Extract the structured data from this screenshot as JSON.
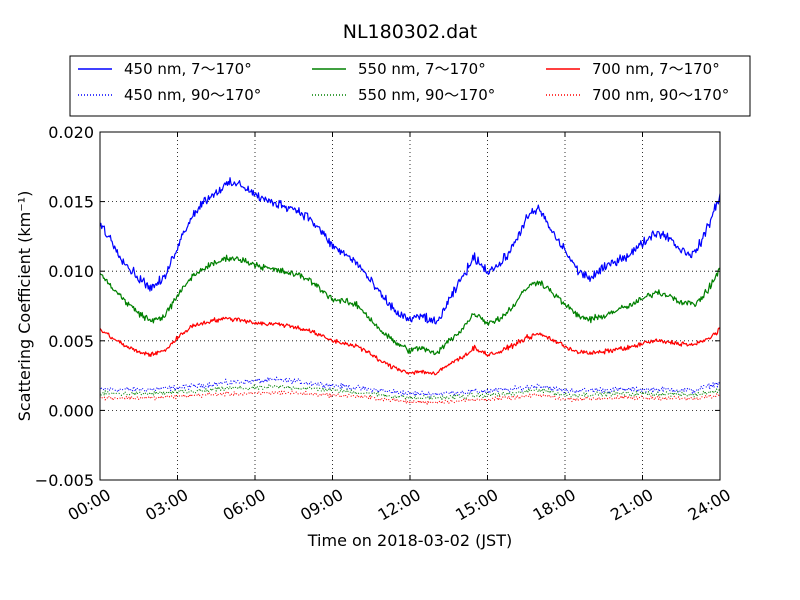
{
  "chart_data": {
    "type": "line",
    "title": "NL180302.dat",
    "xlabel": "Time on 2018-03-02 (JST)",
    "ylabel": "Scattering Coefficient (km⁻¹)",
    "x_unit": "hours",
    "xlim": [
      0,
      24
    ],
    "ylim": [
      -0.005,
      0.02
    ],
    "x_ticks": [
      0,
      3,
      6,
      9,
      12,
      15,
      18,
      21,
      24
    ],
    "x_tick_labels": [
      "00:00",
      "03:00",
      "06:00",
      "09:00",
      "12:00",
      "15:00",
      "18:00",
      "21:00",
      "24:00"
    ],
    "y_ticks": [
      -0.005,
      0.0,
      0.005,
      0.01,
      0.015,
      0.02
    ],
    "y_tick_labels": [
      "−0.005",
      "0.000",
      "0.005",
      "0.010",
      "0.015",
      "0.020"
    ],
    "grid": true,
    "legend_position": "top",
    "series": [
      {
        "name": "450 nm, 7～170°",
        "color": "#0000ff",
        "style": "solid",
        "noise": 0.0005,
        "x": [
          0,
          0.5,
          1,
          1.5,
          2,
          2.5,
          3,
          3.5,
          4,
          4.5,
          5,
          5.5,
          6,
          6.5,
          7,
          7.5,
          8,
          8.5,
          9,
          9.5,
          10,
          10.5,
          11,
          11.5,
          12,
          12.5,
          13,
          13.5,
          14,
          14.5,
          15,
          15.5,
          16,
          16.5,
          17,
          17.5,
          18,
          18.5,
          19,
          19.5,
          20,
          20.5,
          21,
          21.5,
          22,
          22.5,
          23,
          23.5,
          24
        ],
        "y": [
          0.0135,
          0.012,
          0.0105,
          0.0095,
          0.0088,
          0.0095,
          0.0118,
          0.0138,
          0.015,
          0.0157,
          0.0163,
          0.0162,
          0.0155,
          0.015,
          0.0148,
          0.0145,
          0.014,
          0.013,
          0.0118,
          0.0112,
          0.0105,
          0.0092,
          0.008,
          0.007,
          0.0065,
          0.0068,
          0.0062,
          0.0078,
          0.0095,
          0.011,
          0.01,
          0.0105,
          0.0118,
          0.0138,
          0.0145,
          0.0128,
          0.0115,
          0.01,
          0.0095,
          0.0102,
          0.0108,
          0.0112,
          0.012,
          0.0128,
          0.0125,
          0.0115,
          0.0112,
          0.013,
          0.0155
        ]
      },
      {
        "name": "550 nm, 7～170°",
        "color": "#008000",
        "style": "solid",
        "noise": 0.00035,
        "x": [
          0,
          0.5,
          1,
          1.5,
          2,
          2.5,
          3,
          3.5,
          4,
          4.5,
          5,
          5.5,
          6,
          6.5,
          7,
          7.5,
          8,
          8.5,
          9,
          9.5,
          10,
          10.5,
          11,
          11.5,
          12,
          12.5,
          13,
          13.5,
          14,
          14.5,
          15,
          15.5,
          16,
          16.5,
          17,
          17.5,
          18,
          18.5,
          19,
          19.5,
          20,
          20.5,
          21,
          21.5,
          22,
          22.5,
          23,
          23.5,
          24
        ],
        "y": [
          0.0098,
          0.0088,
          0.0078,
          0.007,
          0.0064,
          0.0068,
          0.0082,
          0.0095,
          0.0102,
          0.0106,
          0.011,
          0.0108,
          0.0105,
          0.0102,
          0.01,
          0.0098,
          0.0095,
          0.0088,
          0.008,
          0.0078,
          0.0075,
          0.0065,
          0.0055,
          0.0048,
          0.0043,
          0.0045,
          0.004,
          0.005,
          0.0058,
          0.007,
          0.0063,
          0.0066,
          0.0075,
          0.0088,
          0.0093,
          0.0085,
          0.0076,
          0.0068,
          0.0065,
          0.0068,
          0.0072,
          0.0075,
          0.008,
          0.0085,
          0.0083,
          0.0078,
          0.0076,
          0.0085,
          0.0102
        ]
      },
      {
        "name": "700 nm, 7～170°",
        "color": "#ff0000",
        "style": "solid",
        "noise": 0.00025,
        "x": [
          0,
          0.5,
          1,
          1.5,
          2,
          2.5,
          3,
          3.5,
          4,
          4.5,
          5,
          5.5,
          6,
          6.5,
          7,
          7.5,
          8,
          8.5,
          9,
          9.5,
          10,
          10.5,
          11,
          11.5,
          12,
          12.5,
          13,
          13.5,
          14,
          14.5,
          15,
          15.5,
          16,
          16.5,
          17,
          17.5,
          18,
          18.5,
          19,
          19.5,
          20,
          20.5,
          21,
          21.5,
          22,
          22.5,
          23,
          23.5,
          24
        ],
        "y": [
          0.0058,
          0.0052,
          0.0046,
          0.0042,
          0.004,
          0.0043,
          0.0052,
          0.006,
          0.0063,
          0.0065,
          0.0066,
          0.0065,
          0.0063,
          0.0062,
          0.0062,
          0.006,
          0.0058,
          0.0054,
          0.005,
          0.0048,
          0.0046,
          0.004,
          0.0034,
          0.003,
          0.0027,
          0.0028,
          0.0026,
          0.0033,
          0.0038,
          0.0045,
          0.004,
          0.0042,
          0.0047,
          0.0052,
          0.0055,
          0.0051,
          0.0046,
          0.0042,
          0.0041,
          0.0042,
          0.0044,
          0.0045,
          0.0048,
          0.005,
          0.0049,
          0.0048,
          0.0047,
          0.0051,
          0.0058
        ]
      },
      {
        "name": "450 nm, 90～170°",
        "color": "#0000ff",
        "style": "dotted",
        "noise": 0.0003,
        "x": [
          0,
          2,
          4,
          5,
          6,
          7,
          8,
          10,
          12,
          13,
          14,
          16,
          17,
          18,
          20,
          22,
          23,
          24
        ],
        "y": [
          0.0015,
          0.0015,
          0.0018,
          0.002,
          0.0021,
          0.0022,
          0.002,
          0.0016,
          0.0012,
          0.0012,
          0.0013,
          0.0015,
          0.0018,
          0.0014,
          0.0015,
          0.0015,
          0.0014,
          0.002
        ]
      },
      {
        "name": "550 nm, 90～170°",
        "color": "#008000",
        "style": "dotted",
        "noise": 0.00025,
        "x": [
          0,
          2,
          4,
          5,
          6,
          7,
          8,
          10,
          12,
          13,
          14,
          16,
          17,
          18,
          20,
          22,
          23,
          24
        ],
        "y": [
          0.0012,
          0.0012,
          0.0014,
          0.0016,
          0.0016,
          0.0017,
          0.0016,
          0.0013,
          0.0009,
          0.0009,
          0.001,
          0.0012,
          0.0015,
          0.0011,
          0.0012,
          0.0012,
          0.0011,
          0.0015
        ]
      },
      {
        "name": "700 nm, 90～170°",
        "color": "#ff0000",
        "style": "dotted",
        "noise": 0.00022,
        "x": [
          0,
          2,
          4,
          5,
          6,
          7,
          8,
          10,
          12,
          13,
          14,
          16,
          17,
          18,
          20,
          22,
          23,
          24
        ],
        "y": [
          0.0009,
          0.0009,
          0.0011,
          0.0012,
          0.0012,
          0.0013,
          0.0012,
          0.001,
          0.0006,
          0.0006,
          0.0007,
          0.0009,
          0.0011,
          0.0008,
          0.0009,
          0.0009,
          0.0008,
          0.0011
        ]
      }
    ]
  }
}
